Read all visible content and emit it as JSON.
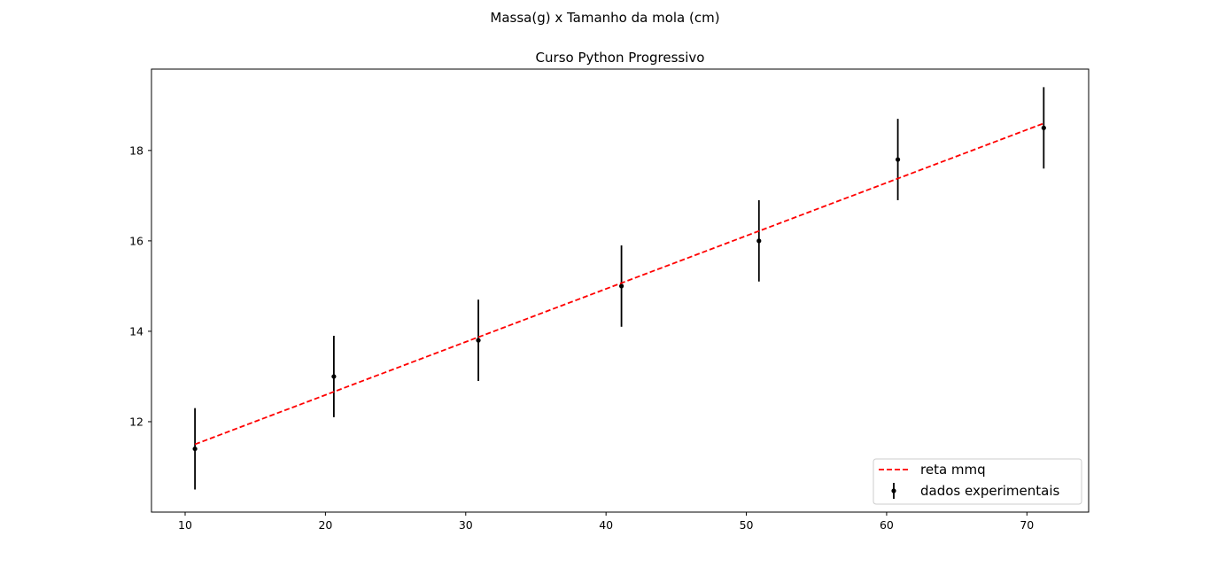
{
  "chart_data": {
    "type": "scatter",
    "suptitle": "Massa(g) x Tamanho da mola (cm)",
    "title": "Curso Python Progressivo",
    "xlabel": "",
    "ylabel": "",
    "xlim": [
      7.6,
      74.4
    ],
    "ylim": [
      10.0,
      19.8
    ],
    "xticks": [
      10,
      20,
      30,
      40,
      50,
      60,
      70
    ],
    "yticks": [
      12,
      14,
      16,
      18
    ],
    "grid": false,
    "legend_position": "lower-right",
    "series": [
      {
        "name": "reta mmq",
        "kind": "line",
        "style": "dashed",
        "color": "#ff0000",
        "x": [
          10.7,
          71.2
        ],
        "y": [
          11.5,
          18.6
        ]
      },
      {
        "name": "dados experimentais",
        "kind": "errorbar",
        "color": "#000000",
        "x": [
          10.7,
          20.6,
          30.9,
          41.1,
          50.9,
          60.8,
          71.2
        ],
        "y": [
          11.4,
          13.0,
          13.8,
          15.0,
          16.0,
          17.8,
          18.5
        ],
        "yerr": [
          0.9,
          0.9,
          0.9,
          0.9,
          0.9,
          0.9,
          0.9
        ]
      }
    ]
  }
}
